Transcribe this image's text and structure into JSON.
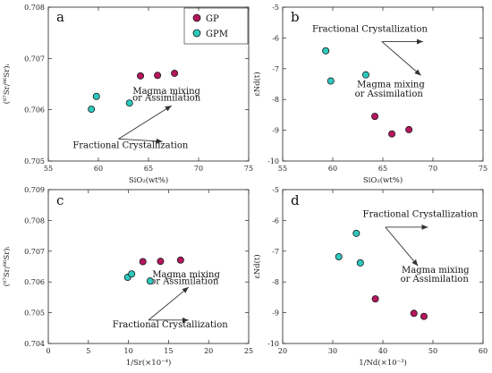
{
  "colors": {
    "GP": "#b5175e",
    "GPM": "#2ec9be",
    "stroke": "#1a1a1a",
    "arrow": "#333333"
  },
  "legend": {
    "position": "top-right of panel a",
    "entries": [
      "GP",
      "GPM"
    ]
  },
  "chart_data": [
    {
      "panel": "a",
      "type": "scatter",
      "xlabel": "SiO₂(wt%)",
      "ylabel": "(⁸⁷Sr/⁸⁶Sr)ᵢ",
      "xlim": [
        55,
        75
      ],
      "ylim": [
        0.705,
        0.708
      ],
      "xticks": [
        55,
        60,
        65,
        70,
        75
      ],
      "yticks": [
        0.705,
        0.706,
        0.707,
        0.708
      ],
      "ytick_labels": [
        "0.705",
        "0.706",
        "0.707",
        "0.708"
      ],
      "series": [
        {
          "name": "GP",
          "x": [
            64.2,
            65.9,
            67.6
          ],
          "y": [
            0.70666,
            0.70667,
            0.70671
          ]
        },
        {
          "name": "GPM",
          "x": [
            59.3,
            59.8,
            63.1
          ],
          "y": [
            0.70601,
            0.70626,
            0.70613
          ]
        }
      ],
      "annotations": [
        {
          "text": "Magma mixing",
          "x": 66.8,
          "y": 0.70631
        },
        {
          "text": "or Assimilation",
          "x": 66.8,
          "y": 0.70618
        },
        {
          "text": "Fractional Crystallization",
          "x": 63.2,
          "y": 0.70525
        }
      ],
      "arrows": [
        {
          "from": [
            62.0,
            0.70543
          ],
          "to": [
            67.3,
            0.70608
          ]
        },
        {
          "from": [
            62.0,
            0.70543
          ],
          "to": [
            66.4,
            0.70538
          ]
        }
      ]
    },
    {
      "panel": "b",
      "type": "scatter",
      "xlabel": "SiO₂(wt%)",
      "ylabel": "εNd(t)",
      "xlim": [
        55,
        75
      ],
      "ylim": [
        -10,
        -5
      ],
      "xticks": [
        55,
        60,
        65,
        70,
        75
      ],
      "yticks": [
        -10,
        -9,
        -8,
        -7,
        -6,
        -5
      ],
      "series": [
        {
          "name": "GP",
          "x": [
            64.2,
            65.9,
            67.6
          ],
          "y": [
            -8.55,
            -9.12,
            -8.98
          ]
        },
        {
          "name": "GPM",
          "x": [
            59.3,
            59.8,
            63.3
          ],
          "y": [
            -6.42,
            -7.4,
            -7.2
          ]
        }
      ],
      "annotations": [
        {
          "text": "Fractional Crystallization",
          "x": 63.7,
          "y": -5.8
        },
        {
          "text": "Magma mixing",
          "x": 65.8,
          "y": -7.6
        },
        {
          "text": "or Assimilation",
          "x": 65.6,
          "y": -7.9
        }
      ],
      "arrows": [
        {
          "from": [
            64.9,
            -6.12
          ],
          "to": [
            69.0,
            -6.12
          ]
        },
        {
          "from": [
            64.9,
            -6.12
          ],
          "to": [
            68.8,
            -7.22
          ]
        }
      ]
    },
    {
      "panel": "c",
      "type": "scatter",
      "xlabel": "1/Sr(×10⁻⁴)",
      "ylabel": "(⁸⁷Sr/⁸⁶Sr)ᵢ",
      "xlim": [
        0,
        25
      ],
      "ylim": [
        0.704,
        0.709
      ],
      "xticks": [
        0,
        5,
        10,
        15,
        20,
        25
      ],
      "yticks": [
        0.704,
        0.705,
        0.706,
        0.707,
        0.708,
        0.709
      ],
      "ytick_labels": [
        "0.704",
        "0.705",
        "0.706",
        "0.707",
        "0.708",
        "0.709"
      ],
      "series": [
        {
          "name": "GP",
          "x": [
            11.8,
            14.0,
            16.5
          ],
          "y": [
            0.70666,
            0.70667,
            0.70671
          ]
        },
        {
          "name": "GPM",
          "x": [
            9.9,
            10.4,
            12.7
          ],
          "y": [
            0.70615,
            0.70626,
            0.70603
          ]
        }
      ],
      "annotations": [
        {
          "text": "Magma mixing",
          "x": 17.2,
          "y": 0.70615
        },
        {
          "text": "or Assimilation",
          "x": 17.0,
          "y": 0.70594
        },
        {
          "text": "Fractional Crystallization",
          "x": 15.2,
          "y": 0.70452
        }
      ],
      "arrows": [
        {
          "from": [
            12.5,
            0.70476
          ],
          "to": [
            17.5,
            0.70583
          ]
        },
        {
          "from": [
            12.5,
            0.70476
          ],
          "to": [
            17.5,
            0.70476
          ]
        }
      ]
    },
    {
      "panel": "d",
      "type": "scatter",
      "xlabel": "1/Nd(×10⁻³)",
      "ylabel": "εNd(t)",
      "xlim": [
        20,
        60
      ],
      "ylim": [
        -10,
        -5
      ],
      "xticks": [
        20,
        30,
        40,
        50,
        60
      ],
      "yticks": [
        -10,
        -9,
        -8,
        -7,
        -6,
        -5
      ],
      "series": [
        {
          "name": "GP",
          "x": [
            38.5,
            46.2,
            48.2
          ],
          "y": [
            -8.55,
            -9.02,
            -9.12
          ]
        },
        {
          "name": "GPM",
          "x": [
            31.2,
            34.7,
            35.5
          ],
          "y": [
            -7.18,
            -6.42,
            -7.38
          ]
        }
      ],
      "annotations": [
        {
          "text": "Fractional Crystallization",
          "x": 47.5,
          "y": -5.88
        },
        {
          "text": "Magma mixing",
          "x": 50.5,
          "y": -7.7
        },
        {
          "text": "or Assimilation",
          "x": 50.3,
          "y": -8.0
        }
      ],
      "arrows": [
        {
          "from": [
            40.5,
            -6.22
          ],
          "to": [
            49.0,
            -6.22
          ]
        },
        {
          "from": [
            40.5,
            -6.22
          ],
          "to": [
            47.0,
            -7.48
          ]
        }
      ]
    }
  ]
}
